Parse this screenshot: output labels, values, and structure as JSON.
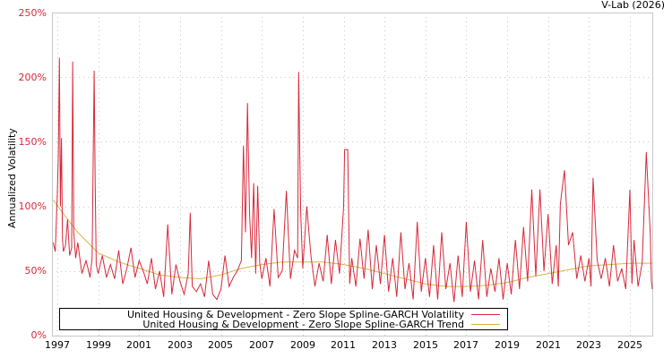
{
  "credit": "V-Lab (2026)",
  "colors": {
    "volatility": "#d8283a",
    "trend": "#d9b44a",
    "axis_tick_label": "#d8283a",
    "grid": "#c8c8c8",
    "frame": "#c8c8c8"
  },
  "legend": {
    "items": [
      {
        "label": "United Housing & Development - Zero Slope Spline-GARCH Volatility",
        "color": "#d8283a"
      },
      {
        "label": "United Housing & Development - Zero Slope Spline-GARCH Trend",
        "color": "#d9b44a"
      }
    ]
  },
  "chart_data": {
    "type": "line",
    "title": "",
    "xlabel": "",
    "ylabel": "Annualized Volatility",
    "ylim": [
      0,
      250
    ],
    "xlim": [
      1996.75,
      2026.15
    ],
    "grid": true,
    "legend_position": "bottom-left inside",
    "y_ticks": [
      "0%",
      "50%",
      "100%",
      "150%",
      "200%",
      "250%"
    ],
    "x_ticks": [
      "1997",
      "1999",
      "2001",
      "2003",
      "2005",
      "2007",
      "2009",
      "2011",
      "2013",
      "2015",
      "2017",
      "2019",
      "2021",
      "2023",
      "2025"
    ],
    "series": [
      {
        "name": "United Housing & Development - Zero Slope Spline-GARCH Volatility",
        "x": [
          1996.8,
          1996.9,
          1997.0,
          1997.05,
          1997.1,
          1997.15,
          1997.2,
          1997.25,
          1997.3,
          1997.4,
          1997.5,
          1997.6,
          1997.7,
          1997.75,
          1997.8,
          1997.9,
          1998.0,
          1998.2,
          1998.4,
          1998.5,
          1998.6,
          1998.7,
          1998.8,
          1998.85,
          1998.9,
          1999.0,
          1999.2,
          1999.4,
          1999.6,
          1999.8,
          2000.0,
          2000.2,
          2000.4,
          2000.6,
          2000.8,
          2001.0,
          2001.2,
          2001.4,
          2001.6,
          2001.8,
          2002.0,
          2002.2,
          2002.4,
          2002.6,
          2002.8,
          2003.0,
          2003.2,
          2003.4,
          2003.5,
          2003.6,
          2003.8,
          2004.0,
          2004.2,
          2004.4,
          2004.6,
          2004.8,
          2005.0,
          2005.2,
          2005.4,
          2005.6,
          2005.8,
          2006.0,
          2006.1,
          2006.2,
          2006.3,
          2006.4,
          2006.5,
          2006.6,
          2006.7,
          2006.8,
          2006.9,
          2007.0,
          2007.2,
          2007.4,
          2007.6,
          2007.8,
          2008.0,
          2008.2,
          2008.4,
          2008.6,
          2008.75,
          2008.8,
          2008.85,
          2008.9,
          2009.0,
          2009.2,
          2009.4,
          2009.6,
          2009.8,
          2010.0,
          2010.2,
          2010.4,
          2010.6,
          2010.8,
          2011.0,
          2011.05,
          2011.1,
          2011.2,
          2011.3,
          2011.4,
          2011.6,
          2011.8,
          2012.0,
          2012.2,
          2012.4,
          2012.6,
          2012.8,
          2013.0,
          2013.2,
          2013.4,
          2013.6,
          2013.8,
          2014.0,
          2014.2,
          2014.4,
          2014.6,
          2014.8,
          2015.0,
          2015.2,
          2015.4,
          2015.6,
          2015.8,
          2016.0,
          2016.2,
          2016.4,
          2016.6,
          2016.8,
          2017.0,
          2017.2,
          2017.4,
          2017.6,
          2017.8,
          2018.0,
          2018.2,
          2018.4,
          2018.6,
          2018.8,
          2019.0,
          2019.2,
          2019.4,
          2019.6,
          2019.8,
          2020.0,
          2020.2,
          2020.4,
          2020.6,
          2020.8,
          2021.0,
          2021.2,
          2021.4,
          2021.5,
          2021.6,
          2021.8,
          2022.0,
          2022.2,
          2022.4,
          2022.6,
          2022.8,
          2023.0,
          2023.1,
          2023.2,
          2023.4,
          2023.6,
          2023.8,
          2024.0,
          2024.2,
          2024.4,
          2024.6,
          2024.8,
          2025.0,
          2025.1,
          2025.2,
          2025.4,
          2025.6,
          2025.8,
          2026.0,
          2026.05,
          2026.1
        ],
        "values": [
          72,
          65,
          110,
          140,
          215,
          100,
          153,
          75,
          65,
          70,
          90,
          62,
          68,
          212,
          80,
          60,
          72,
          48,
          58,
          52,
          45,
          60,
          205,
          120,
          55,
          48,
          62,
          45,
          55,
          44,
          66,
          40,
          52,
          68,
          45,
          58,
          50,
          40,
          60,
          36,
          50,
          30,
          86,
          32,
          55,
          42,
          32,
          48,
          95,
          38,
          34,
          40,
          30,
          58,
          32,
          28,
          36,
          62,
          38,
          45,
          50,
          58,
          147,
          80,
          180,
          95,
          60,
          118,
          48,
          116,
          56,
          44,
          60,
          38,
          98,
          45,
          50,
          112,
          44,
          66,
          60,
          204,
          150,
          95,
          52,
          100,
          62,
          38,
          56,
          42,
          78,
          40,
          74,
          48,
          100,
          144,
          144,
          144,
          40,
          60,
          38,
          75,
          44,
          82,
          36,
          70,
          40,
          78,
          34,
          60,
          30,
          80,
          36,
          56,
          28,
          88,
          34,
          60,
          30,
          70,
          28,
          80,
          36,
          56,
          26,
          62,
          30,
          88,
          34,
          58,
          28,
          74,
          30,
          52,
          34,
          60,
          28,
          56,
          32,
          74,
          36,
          84,
          42,
          113,
          46,
          113,
          50,
          94,
          40,
          70,
          38,
          102,
          128,
          70,
          80,
          44,
          62,
          42,
          60,
          38,
          122,
          58,
          44,
          60,
          38,
          70,
          42,
          52,
          36,
          113,
          40,
          74,
          38,
          56,
          142,
          78,
          42,
          36
        ],
        "color": "#d8283a"
      },
      {
        "name": "United Housing & Development - Zero Slope Spline-GARCH Trend",
        "x": [
          1996.8,
          1997.5,
          1998.0,
          1999.0,
          2000.0,
          2001.0,
          2002.0,
          2003.0,
          2004.0,
          2005.0,
          2006.0,
          2007.0,
          2008.0,
          2009.0,
          2010.0,
          2011.0,
          2012.0,
          2013.0,
          2014.0,
          2015.0,
          2016.0,
          2017.0,
          2018.0,
          2019.0,
          2020.0,
          2021.0,
          2022.0,
          2023.0,
          2024.0,
          2025.0,
          2026.1
        ],
        "values": [
          105,
          90,
          80,
          64,
          57,
          52,
          47,
          45,
          44,
          47,
          52,
          55,
          57,
          57,
          57,
          55,
          52,
          48,
          44,
          40,
          38,
          38,
          39,
          41,
          45,
          48,
          51,
          54,
          55,
          56,
          56
        ],
        "color": "#d9b44a"
      }
    ]
  }
}
